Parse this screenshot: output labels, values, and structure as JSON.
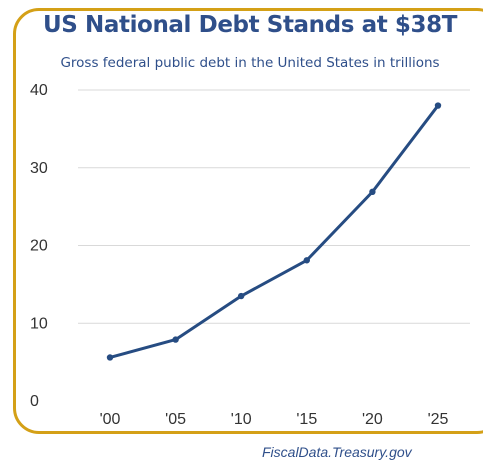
{
  "chart_data": {
    "type": "line",
    "title": "US National Debt Stands at $38T",
    "subtitle": "Gross federal public debt in the United States in trillions",
    "x": [
      "'00",
      "'05",
      "'10",
      "'15",
      "'20",
      "'25"
    ],
    "series": [
      {
        "values": [
          5.6,
          7.9,
          13.5,
          18.1,
          26.9,
          38.0
        ]
      }
    ],
    "yticks": [
      0,
      10,
      20,
      30,
      40
    ],
    "ylim": [
      0,
      40
    ],
    "grid": true,
    "source": "FiscalData.Treasury.gov"
  },
  "colors": {
    "line": "#264c82",
    "frame": "#d4a017",
    "title": "#2f4f8a",
    "grid": "#d9d9d9",
    "axis_text": "#333333"
  }
}
